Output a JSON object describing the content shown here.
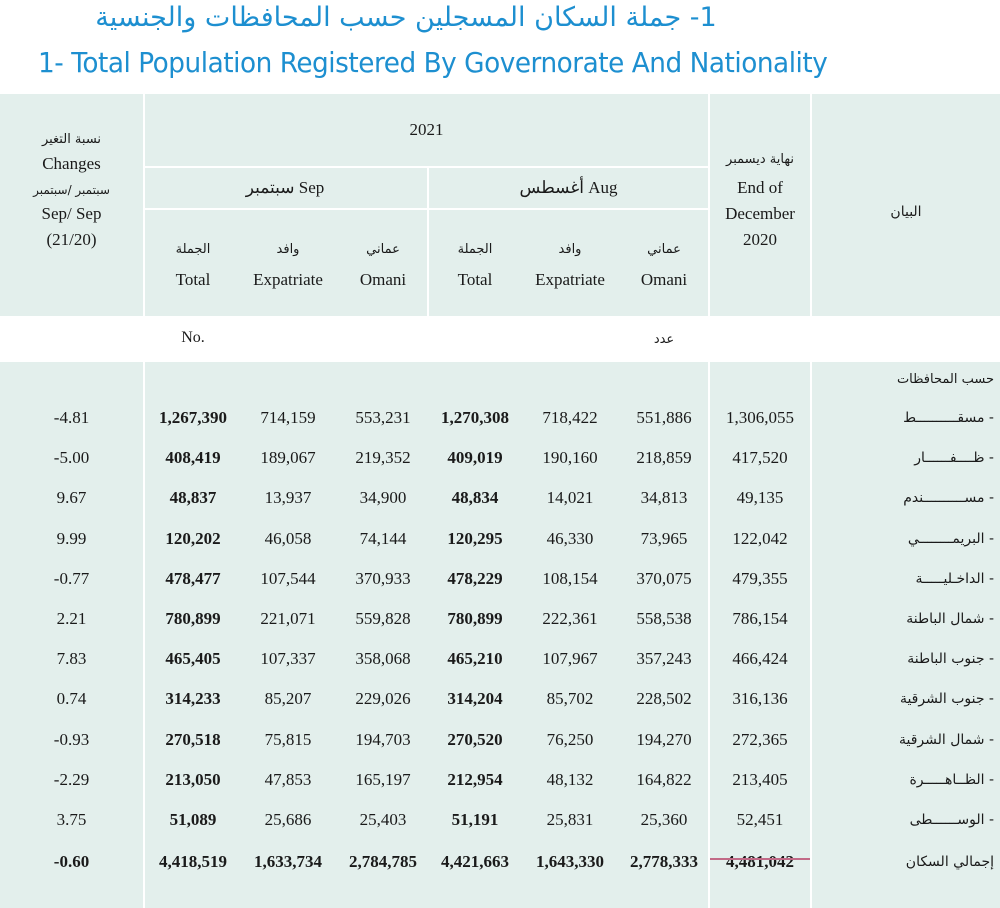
{
  "title_ar": "1- جملة السكان المسجلين حسب المحافظات والجنسية",
  "title_en": "1- Total Population Registered By Governorate And Nationality",
  "header": {
    "year": "2021",
    "changes_ar": "نسبة التغير",
    "changes_en": "Changes",
    "changes_ar2": "سبتمبر /سبتمبر",
    "changes_en2": "Sep/ Sep",
    "changes_period": "(21/20)",
    "sep_label": "سبتمبر Sep",
    "aug_label": "أغسطس Aug",
    "total_ar": "الجملة",
    "total_en": "Total",
    "expat_ar": "وافد",
    "expat_en": "Expatriate",
    "omani_ar": "عماني",
    "omani_en": "Omani",
    "dec_ar": "نهاية ديسمبر",
    "dec_en1": "End of",
    "dec_en2": "December",
    "dec_en3": "2020",
    "item_ar": "البيان",
    "unit_en": "No.",
    "unit_ar": "عدد",
    "section_ar": "حسب المحافظات"
  },
  "rows": [
    {
      "name": "- مسقــــــــــط",
      "change": "-4.81",
      "sep_total": "1,267,390",
      "sep_expat": "714,159",
      "sep_omani": "553,231",
      "aug_total": "1,270,308",
      "aug_expat": "718,422",
      "aug_omani": "551,886",
      "dec2020": "1,306,055"
    },
    {
      "name": "- ظــــفــــــار",
      "change": "-5.00",
      "sep_total": "408,419",
      "sep_expat": "189,067",
      "sep_omani": "219,352",
      "aug_total": "409,019",
      "aug_expat": "190,160",
      "aug_omani": "218,859",
      "dec2020": "417,520"
    },
    {
      "name": "- مســــــــــندم",
      "change": "9.67",
      "sep_total": "48,837",
      "sep_expat": "13,937",
      "sep_omani": "34,900",
      "aug_total": "48,834",
      "aug_expat": "14,021",
      "aug_omani": "34,813",
      "dec2020": "49,135"
    },
    {
      "name": "- البريمــــــــي",
      "change": "9.99",
      "sep_total": "120,202",
      "sep_expat": "46,058",
      "sep_omani": "74,144",
      "aug_total": "120,295",
      "aug_expat": "46,330",
      "aug_omani": "73,965",
      "dec2020": "122,042"
    },
    {
      "name": "- الداخـليـــــة",
      "change": "-0.77",
      "sep_total": "478,477",
      "sep_expat": "107,544",
      "sep_omani": "370,933",
      "aug_total": "478,229",
      "aug_expat": "108,154",
      "aug_omani": "370,075",
      "dec2020": "479,355"
    },
    {
      "name": "- شمال الباطنة",
      "change": "2.21",
      "sep_total": "780,899",
      "sep_expat": "221,071",
      "sep_omani": "559,828",
      "aug_total": "780,899",
      "aug_expat": "222,361",
      "aug_omani": "558,538",
      "dec2020": "786,154"
    },
    {
      "name": "- جنوب الباطنة",
      "change": "7.83",
      "sep_total": "465,405",
      "sep_expat": "107,337",
      "sep_omani": "358,068",
      "aug_total": "465,210",
      "aug_expat": "107,967",
      "aug_omani": "357,243",
      "dec2020": "466,424"
    },
    {
      "name": "- جنوب الشرقية",
      "change": "0.74",
      "sep_total": "314,233",
      "sep_expat": "85,207",
      "sep_omani": "229,026",
      "aug_total": "314,204",
      "aug_expat": "85,702",
      "aug_omani": "228,502",
      "dec2020": "316,136"
    },
    {
      "name": "- شمال الشرقية",
      "change": "-0.93",
      "sep_total": "270,518",
      "sep_expat": "75,815",
      "sep_omani": "194,703",
      "aug_total": "270,520",
      "aug_expat": "76,250",
      "aug_omani": "194,270",
      "dec2020": "272,365"
    },
    {
      "name": "- الظــاهـــــرة",
      "change": "-2.29",
      "sep_total": "213,050",
      "sep_expat": "47,853",
      "sep_omani": "165,197",
      "aug_total": "212,954",
      "aug_expat": "48,132",
      "aug_omani": "164,822",
      "dec2020": "213,405"
    },
    {
      "name": "- الوســــــطى",
      "change": "3.75",
      "sep_total": "51,089",
      "sep_expat": "25,686",
      "sep_omani": "25,403",
      "aug_total": "51,191",
      "aug_expat": "25,831",
      "aug_omani": "25,360",
      "dec2020": "52,451"
    }
  ],
  "total_row": {
    "name": "إجمالي السكان",
    "change": "-0.60",
    "sep_total": "4,418,519",
    "sep_expat": "1,633,734",
    "sep_omani": "2,784,785",
    "aug_total": "4,421,663",
    "aug_expat": "1,643,330",
    "aug_omani": "2,778,333",
    "dec2020": "4,481,042"
  },
  "colors": {
    "band": "#e3efec",
    "title": "#1d8fd0",
    "accent_line": "#c26a87"
  }
}
